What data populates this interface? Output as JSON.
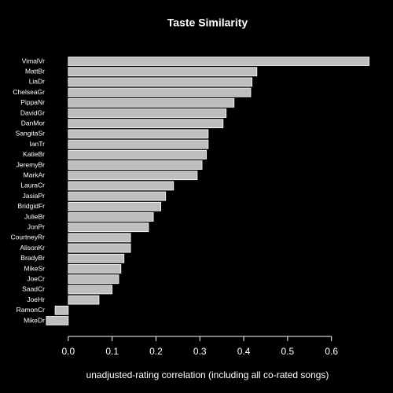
{
  "chart_data": {
    "type": "barh",
    "title": "Taste Similarity",
    "x_label": "unadjusted-rating correlation (including all co-rated songs)",
    "categories": [
      "VimalVr",
      "MattBr",
      "LiaDr",
      "ChelseaGr",
      "PippaNr",
      "DavidGr",
      "DanMor",
      "SangitaSr",
      "IanTr",
      "KatieBr",
      "JeremyBr",
      "MarkAr",
      "LauraCr",
      "JasiaPr",
      "BridgidFr",
      "JulieBr",
      "JonPr",
      "CourtneyRr",
      "AlisonKr",
      "BradyBr",
      "MikeSr",
      "JoeCr",
      "SaadCr",
      "JoeHr",
      "RamonCr",
      "MikeDr"
    ],
    "values": [
      0.686,
      0.43,
      0.419,
      0.416,
      0.378,
      0.36,
      0.353,
      0.319,
      0.319,
      0.315,
      0.305,
      0.294,
      0.24,
      0.222,
      0.211,
      0.194,
      0.183,
      0.142,
      0.142,
      0.127,
      0.12,
      0.115,
      0.1,
      0.07,
      -0.03,
      -0.05
    ],
    "color": "#bebebe",
    "xlim": [
      -0.075,
      0.726
    ],
    "xticks": [
      {
        "value": 0,
        "label": "0.0"
      },
      0.1,
      0.2,
      0.3,
      0.4,
      0.5,
      0.6
    ]
  }
}
